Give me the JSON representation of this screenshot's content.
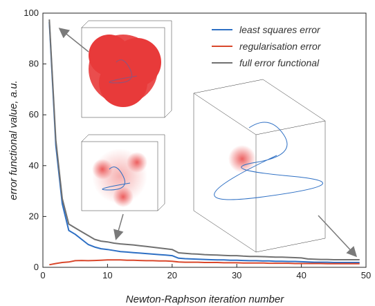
{
  "chart_data": {
    "type": "line",
    "xlabel": "Newton-Raphson iteration number",
    "ylabel": "error functional value, a.u.",
    "xlim": [
      0,
      50
    ],
    "ylim": [
      0,
      100
    ],
    "xticks": [
      0,
      10,
      20,
      30,
      40,
      50
    ],
    "yticks": [
      0,
      20,
      40,
      60,
      80,
      100
    ],
    "xtick_labels": [
      "0",
      "10",
      "20",
      "30",
      "40",
      "50"
    ],
    "ytick_labels": [
      "0",
      "20",
      "40",
      "60",
      "80",
      "100"
    ],
    "grid": false,
    "legend_position": "top-right",
    "x": [
      1,
      2,
      3,
      4,
      5,
      6,
      7,
      8,
      9,
      10,
      11,
      12,
      13,
      14,
      15,
      16,
      17,
      18,
      19,
      20,
      21,
      22,
      23,
      24,
      25,
      26,
      27,
      28,
      29,
      30,
      31,
      32,
      33,
      34,
      35,
      36,
      37,
      38,
      39,
      40,
      41,
      42,
      43,
      44,
      45,
      46,
      47,
      48,
      49
    ],
    "series": [
      {
        "name": "least squares error",
        "color": "#2d6fc4",
        "values": [
          96.5,
          48,
          25,
          14.5,
          13,
          11,
          9,
          8,
          7.3,
          7,
          6.6,
          6.2,
          6,
          5.8,
          5.6,
          5.4,
          5.2,
          5,
          4.8,
          4.6,
          3.6,
          3.4,
          3.3,
          3.2,
          3.1,
          3,
          2.9,
          2.9,
          2.8,
          2.8,
          2.7,
          2.6,
          2.6,
          2.5,
          2.5,
          2.4,
          2.4,
          2.3,
          2.3,
          2.2,
          2.1,
          2,
          2,
          2,
          1.9,
          1.9,
          1.9,
          1.9,
          1.9
        ]
      },
      {
        "name": "regularisation error",
        "color": "#d9472b",
        "values": [
          1,
          1.5,
          1.9,
          2.1,
          2.6,
          2.7,
          2.6,
          2.7,
          2.8,
          2.9,
          2.9,
          2.9,
          2.8,
          2.8,
          2.7,
          2.6,
          2.6,
          2.5,
          2.5,
          2.4,
          2.1,
          2,
          2,
          2,
          1.9,
          1.9,
          1.9,
          1.8,
          1.8,
          1.8,
          1.7,
          1.7,
          1.7,
          1.7,
          1.6,
          1.6,
          1.6,
          1.6,
          1.5,
          1.5,
          1.5,
          1.5,
          1.5,
          1.4,
          1.4,
          1.4,
          1.4,
          1.4,
          1.4
        ]
      },
      {
        "name": "full error functional",
        "color": "#707070",
        "values": [
          97.5,
          50,
          27,
          17,
          15.5,
          14,
          12.5,
          11,
          10.3,
          10,
          9.5,
          9.2,
          9,
          8.8,
          8.5,
          8.2,
          7.9,
          7.6,
          7.3,
          7,
          5.7,
          5.5,
          5.3,
          5.2,
          5,
          4.9,
          4.8,
          4.7,
          4.6,
          4.6,
          4.4,
          4.3,
          4.3,
          4.2,
          4.1,
          4,
          4,
          3.9,
          3.8,
          3.7,
          3.3,
          3.2,
          3.1,
          3.1,
          3,
          3,
          3,
          3,
          3
        ]
      }
    ]
  },
  "insets": [
    {
      "id": "inset-iteration-1",
      "color": "#e83a3a",
      "points_to_x": 2,
      "points_to_y": 95
    },
    {
      "id": "inset-iteration-10",
      "color": "#e83a3a",
      "points_to_x": 10,
      "points_to_y": 11
    },
    {
      "id": "inset-iteration-49",
      "color": "#e83a3a",
      "points_to_x": 49,
      "points_to_y": 4
    }
  ],
  "colors": {
    "axis": "#222222",
    "inset_frame": "#333333",
    "arrow": "#7a7a7a",
    "trajectory": "#2d6fc4"
  }
}
